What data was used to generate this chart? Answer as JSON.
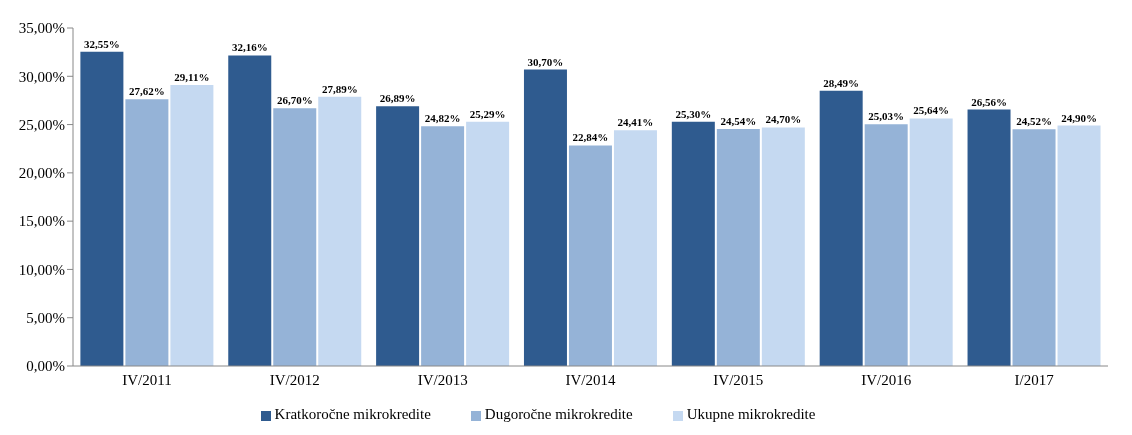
{
  "chart_data": {
    "type": "bar",
    "categories": [
      "IV/2011",
      "IV/2012",
      "IV/2013",
      "IV/2014",
      "IV/2015",
      "IV/2016",
      "I/2017"
    ],
    "series": [
      {
        "name": "Kratkoročne mikrokredite",
        "color": "#2f5b8f",
        "values": [
          32.55,
          32.16,
          26.89,
          30.7,
          25.3,
          28.49,
          26.56
        ],
        "value_labels": [
          "32,55%",
          "32,16%",
          "26,89%",
          "30,70%",
          "25,30%",
          "28,49%",
          "26,56%"
        ]
      },
      {
        "name": "Dugoročne mikrokredite",
        "color": "#95b3d7",
        "values": [
          27.62,
          26.7,
          24.82,
          22.84,
          24.54,
          25.03,
          24.52
        ],
        "value_labels": [
          "27,62%",
          "26,70%",
          "24,82%",
          "22,84%",
          "24,54%",
          "25,03%",
          "24,52%"
        ]
      },
      {
        "name": "Ukupne mikrokredite",
        "color": "#c5d9f1",
        "values": [
          29.11,
          27.89,
          25.29,
          24.41,
          24.7,
          25.64,
          24.9
        ],
        "value_labels": [
          "29,11%",
          "27,89%",
          "25,29%",
          "24,41%",
          "24,70%",
          "25,64%",
          "24,90%"
        ]
      }
    ],
    "ylim": [
      0,
      35
    ],
    "yticks": [
      {
        "value": 0,
        "label": "0,00%"
      },
      {
        "value": 5,
        "label": "5,00%"
      },
      {
        "value": 10,
        "label": "10,00%"
      },
      {
        "value": 15,
        "label": "15,00%"
      },
      {
        "value": 20,
        "label": "20,00%"
      },
      {
        "value": 25,
        "label": "25,00%"
      },
      {
        "value": 30,
        "label": "30,00%"
      },
      {
        "value": 35,
        "label": "35,00%"
      }
    ],
    "grid": false,
    "legend": "bottom"
  }
}
